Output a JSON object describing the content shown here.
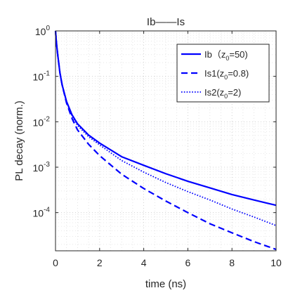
{
  "chart_data": {
    "type": "line",
    "title": "Ib——Is",
    "xlabel": "time (ns)",
    "ylabel": "PL decay (norm.)",
    "xlim": [
      0,
      10
    ],
    "ylim": [
      1.445e-05,
      1
    ],
    "yscale": "log",
    "grid": "dotted",
    "legend_position": "top-right",
    "x_ticks": [
      {
        "value": 0,
        "label": "0"
      },
      {
        "value": 2,
        "label": "2"
      },
      {
        "value": 4,
        "label": "4"
      },
      {
        "value": 6,
        "label": "6"
      },
      {
        "value": 8,
        "label": "8"
      },
      {
        "value": 10,
        "label": "10"
      }
    ],
    "y_ticks": [
      {
        "value": 1,
        "base": "10",
        "exp": "0"
      },
      {
        "value": 0.1,
        "base": "10",
        "exp": "-1"
      },
      {
        "value": 0.01,
        "base": "10",
        "exp": "-2"
      },
      {
        "value": 0.001,
        "base": "10",
        "exp": "-3"
      },
      {
        "value": 0.0001,
        "base": "10",
        "exp": "-4"
      }
    ],
    "series": [
      {
        "name": "Ib（z0=50)",
        "legend": {
          "pre": "Ib（z",
          "sub": "0",
          "post": "=50)"
        },
        "color": "#0000ff",
        "dash": "solid",
        "x": [
          0,
          0.05,
          0.1,
          0.2,
          0.3,
          0.5,
          0.75,
          1,
          1.5,
          2,
          3,
          4,
          5,
          6,
          7,
          8,
          9,
          10
        ],
        "y": [
          1,
          0.5,
          0.3,
          0.12,
          0.065,
          0.028,
          0.0142,
          0.009,
          0.0051,
          0.0034,
          0.0017,
          0.0011,
          0.00072,
          0.00049,
          0.00035,
          0.00025,
          0.00019,
          0.000145
        ]
      },
      {
        "name": "Is1(z0=0.8)",
        "legend": {
          "pre": "Is1(z",
          "sub": "0",
          "post": "=0.8)"
        },
        "color": "#0000ff",
        "dash": "dashed",
        "x": [
          0,
          0.05,
          0.1,
          0.2,
          0.3,
          0.5,
          0.75,
          1,
          1.5,
          2,
          3,
          4,
          5,
          6,
          7,
          8,
          9,
          10
        ],
        "y": [
          1,
          0.5,
          0.3,
          0.12,
          0.065,
          0.026,
          0.0118,
          0.0066,
          0.0032,
          0.0018,
          0.0007,
          0.00034,
          0.00018,
          0.0001,
          5.7e-05,
          3.6e-05,
          2.3e-05,
          1.55e-05
        ]
      },
      {
        "name": "Is2(z0=2)",
        "legend": {
          "pre": "Is2(z",
          "sub": "0",
          "post": "=2)"
        },
        "color": "#0000ff",
        "dash": "dotted",
        "x": [
          0,
          0.05,
          0.1,
          0.2,
          0.3,
          0.5,
          0.75,
          1,
          1.5,
          2,
          3,
          4,
          5,
          6,
          7,
          8,
          9,
          10
        ],
        "y": [
          1,
          0.5,
          0.3,
          0.12,
          0.065,
          0.027,
          0.0135,
          0.0083,
          0.0047,
          0.0031,
          0.0014,
          0.00078,
          0.00046,
          0.00029,
          0.00019,
          0.00012,
          8e-05,
          5.2e-05
        ]
      }
    ]
  }
}
